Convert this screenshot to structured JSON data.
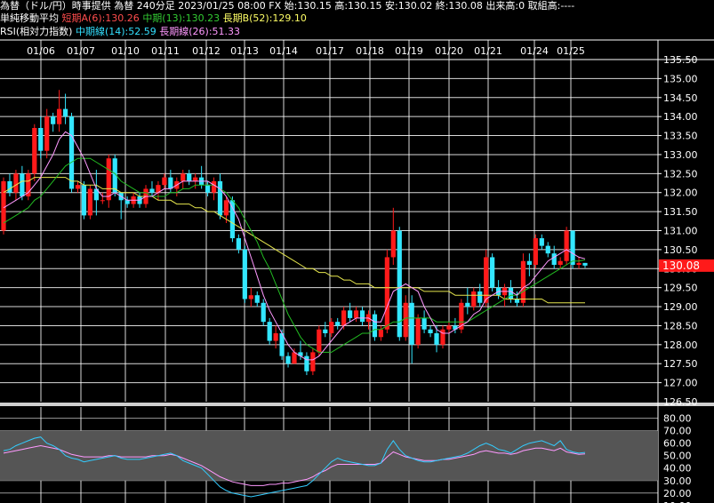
{
  "header": {
    "line1": "為替（ドル/円）時事提供 為替 240分足 2023/01/25 08:00 FX 始:130.15 高:130.15 安:130.02 終:130.08 出来高:0 取組高:----",
    "ma_label": "単純移動平均",
    "ma_short": "短期A(6):130.26",
    "ma_mid": "中期(13):130.23",
    "ma_long": "長期B(52):129.10",
    "rsi_label": "RSI(相対力指数)",
    "rsi_mid": "中期線(14):52.59",
    "rsi_long": "長期線(26):51.33"
  },
  "colors": {
    "up": "#ff1a1a",
    "down": "#33e6ff",
    "ma_short": "#ff99ff",
    "ma_mid": "#22bb22",
    "ma_long": "#e6e64d",
    "rsi_mid": "#33ccff",
    "rsi_long": "#ff99ff",
    "price_badge": "#ff1a1a"
  },
  "chart_data": [
    {
      "type": "candlestick",
      "x_labels": [
        "01/06",
        "01/07",
        "01/10",
        "01/11",
        "01/12",
        "01/13",
        "01/14",
        "01/17",
        "01/18",
        "01/19",
        "01/20",
        "01/21",
        "01/24",
        "01/25"
      ],
      "y_ticks": [
        "135.00",
        "134.50",
        "134.00",
        "133.50",
        "133.00",
        "132.50",
        "132.00",
        "131.50",
        "131.00",
        "130.50",
        "130.00",
        "129.50",
        "129.00",
        "128.50",
        "128.00",
        "127.50",
        "127.00"
      ],
      "y_tick_values": [
        135.0,
        134.5,
        134.0,
        133.5,
        133.0,
        132.5,
        132.0,
        131.5,
        131.0,
        130.5,
        130.0,
        129.5,
        129.0,
        128.5,
        128.0,
        127.5,
        127.0
      ],
      "ylim": [
        126.5,
        135.5
      ],
      "last_price": "130.08",
      "candles": [
        [
          131.0,
          132.4,
          130.9,
          132.3
        ],
        [
          132.3,
          132.5,
          131.9,
          132.0
        ],
        [
          132.0,
          132.6,
          131.8,
          132.5
        ],
        [
          132.5,
          132.7,
          131.8,
          131.9
        ],
        [
          131.9,
          132.6,
          131.8,
          132.5
        ],
        [
          132.5,
          133.8,
          132.3,
          133.7
        ],
        [
          133.7,
          134.0,
          132.9,
          133.1
        ],
        [
          133.1,
          134.2,
          132.9,
          134.0
        ],
        [
          134.0,
          134.1,
          133.6,
          133.8
        ],
        [
          133.8,
          134.7,
          133.6,
          134.2
        ],
        [
          134.2,
          134.6,
          133.8,
          134.0
        ],
        [
          134.0,
          134.1,
          132.0,
          132.1
        ],
        [
          132.1,
          132.3,
          132.0,
          132.2
        ],
        [
          132.2,
          132.3,
          131.3,
          131.4
        ],
        [
          131.4,
          132.2,
          131.3,
          132.1
        ],
        [
          132.1,
          132.6,
          131.4,
          131.8
        ],
        [
          131.8,
          132.0,
          131.7,
          131.8
        ],
        [
          131.8,
          133.0,
          131.6,
          132.9
        ],
        [
          132.9,
          133.0,
          131.9,
          132.0
        ],
        [
          132.0,
          132.0,
          131.3,
          131.8
        ],
        [
          131.8,
          131.9,
          131.6,
          131.7
        ],
        [
          131.7,
          132.0,
          131.6,
          131.9
        ],
        [
          131.9,
          132.0,
          131.6,
          131.7
        ],
        [
          131.7,
          132.2,
          131.6,
          132.1
        ],
        [
          132.1,
          132.3,
          131.9,
          132.0
        ],
        [
          132.0,
          132.3,
          131.8,
          132.2
        ],
        [
          132.2,
          132.5,
          132.1,
          132.4
        ],
        [
          132.4,
          132.6,
          132.0,
          132.1
        ],
        [
          132.1,
          132.4,
          131.9,
          132.3
        ],
        [
          132.3,
          132.6,
          132.1,
          132.5
        ],
        [
          132.5,
          132.6,
          132.2,
          132.3
        ],
        [
          132.3,
          132.5,
          132.1,
          132.4
        ],
        [
          132.4,
          132.7,
          132.1,
          132.2
        ],
        [
          132.2,
          132.3,
          131.9,
          132.0
        ],
        [
          132.0,
          132.4,
          131.8,
          132.3
        ],
        [
          132.3,
          132.5,
          131.3,
          131.4
        ],
        [
          131.4,
          131.9,
          131.2,
          131.8
        ],
        [
          131.8,
          131.9,
          130.7,
          130.8
        ],
        [
          130.8,
          130.9,
          130.4,
          130.5
        ],
        [
          130.5,
          130.6,
          129.1,
          129.2
        ],
        [
          129.2,
          129.5,
          129.0,
          129.3
        ],
        [
          129.3,
          129.4,
          129.0,
          129.1
        ],
        [
          129.1,
          129.2,
          128.5,
          128.6
        ],
        [
          128.6,
          128.7,
          128.0,
          128.1
        ],
        [
          128.1,
          128.5,
          127.9,
          128.3
        ],
        [
          128.3,
          128.4,
          127.6,
          127.7
        ],
        [
          127.7,
          127.8,
          127.4,
          127.5
        ],
        [
          127.5,
          127.9,
          127.5,
          127.8
        ],
        [
          127.8,
          128.1,
          127.6,
          127.7
        ],
        [
          127.7,
          127.8,
          127.2,
          127.3
        ],
        [
          127.3,
          127.9,
          127.2,
          127.8
        ],
        [
          127.8,
          128.5,
          127.7,
          128.4
        ],
        [
          128.4,
          128.6,
          128.2,
          128.3
        ],
        [
          128.3,
          128.7,
          128.2,
          128.6
        ],
        [
          128.6,
          128.7,
          128.4,
          128.5
        ],
        [
          128.5,
          129.0,
          128.4,
          128.9
        ],
        [
          128.9,
          129.1,
          128.6,
          128.7
        ],
        [
          128.7,
          129.0,
          128.6,
          128.9
        ],
        [
          128.9,
          129.0,
          128.5,
          128.6
        ],
        [
          128.6,
          128.9,
          128.4,
          128.8
        ],
        [
          128.8,
          128.9,
          128.1,
          128.2
        ],
        [
          128.2,
          128.5,
          128.1,
          128.4
        ],
        [
          128.4,
          130.5,
          128.3,
          130.3
        ],
        [
          130.3,
          131.6,
          130.1,
          131.0
        ],
        [
          131.0,
          131.1,
          128.1,
          128.2
        ],
        [
          128.2,
          129.3,
          128.1,
          129.1
        ],
        [
          129.1,
          129.3,
          127.5,
          128.0
        ],
        [
          128.0,
          128.8,
          127.9,
          128.7
        ],
        [
          128.7,
          128.9,
          128.3,
          128.4
        ],
        [
          128.4,
          128.5,
          128.2,
          128.3
        ],
        [
          128.3,
          128.5,
          127.8,
          128.0
        ],
        [
          128.0,
          128.5,
          127.9,
          128.4
        ],
        [
          128.4,
          128.6,
          128.3,
          128.5
        ],
        [
          128.5,
          128.7,
          128.3,
          128.4
        ],
        [
          128.4,
          129.2,
          128.3,
          129.1
        ],
        [
          129.1,
          129.5,
          128.8,
          129.0
        ],
        [
          129.0,
          129.5,
          128.9,
          129.4
        ],
        [
          129.4,
          129.6,
          129.0,
          129.1
        ],
        [
          129.1,
          130.5,
          129.0,
          130.3
        ],
        [
          130.3,
          130.4,
          129.4,
          129.5
        ],
        [
          129.5,
          129.7,
          129.2,
          129.3
        ],
        [
          129.3,
          129.6,
          129.0,
          129.5
        ],
        [
          129.5,
          129.7,
          129.1,
          129.2
        ],
        [
          129.2,
          129.4,
          129.0,
          129.1
        ],
        [
          129.1,
          130.4,
          129.0,
          130.2
        ],
        [
          130.2,
          130.4,
          129.8,
          130.1
        ],
        [
          130.1,
          130.9,
          130.0,
          130.8
        ],
        [
          130.8,
          130.9,
          130.5,
          130.6
        ],
        [
          130.6,
          130.7,
          130.3,
          130.4
        ],
        [
          130.4,
          130.6,
          130.0,
          130.1
        ],
        [
          130.1,
          130.3,
          130.0,
          130.2
        ],
        [
          130.2,
          131.1,
          130.1,
          131.0
        ],
        [
          131.0,
          131.0,
          130.0,
          130.1
        ],
        [
          130.1,
          130.3,
          130.0,
          130.15
        ],
        [
          130.15,
          130.15,
          130.02,
          130.08
        ]
      ],
      "ma_short": [
        131.6,
        131.7,
        131.8,
        131.9,
        132.0,
        132.2,
        132.4,
        132.7,
        133.0,
        133.4,
        133.6,
        133.5,
        133.2,
        132.9,
        132.5,
        132.1,
        131.9,
        131.9,
        132.0,
        131.9,
        131.8,
        131.8,
        131.8,
        131.9,
        131.9,
        132.0,
        132.1,
        132.1,
        132.2,
        132.3,
        132.3,
        132.3,
        132.3,
        132.3,
        132.2,
        132.1,
        131.9,
        131.6,
        131.3,
        130.8,
        130.3,
        129.8,
        129.3,
        128.9,
        128.6,
        128.3,
        128.0,
        127.8,
        127.7,
        127.6,
        127.6,
        127.7,
        127.9,
        128.1,
        128.3,
        128.5,
        128.6,
        128.7,
        128.7,
        128.7,
        128.6,
        128.6,
        129.0,
        129.4,
        129.5,
        129.6,
        129.5,
        129.4,
        129.0,
        128.7,
        128.4,
        128.3,
        128.3,
        128.4,
        128.5,
        128.6,
        128.8,
        128.9,
        129.2,
        129.3,
        129.4,
        129.4,
        129.4,
        129.3,
        129.5,
        129.6,
        129.8,
        130.0,
        130.2,
        130.3,
        130.4,
        130.5,
        130.4,
        130.3,
        130.26
      ],
      "ma_mid": [
        131.2,
        131.3,
        131.4,
        131.5,
        131.6,
        131.8,
        131.9,
        132.1,
        132.3,
        132.5,
        132.7,
        132.8,
        132.9,
        132.9,
        132.9,
        132.8,
        132.7,
        132.6,
        132.5,
        132.3,
        132.2,
        132.1,
        132.0,
        132.0,
        131.9,
        131.9,
        131.9,
        132.0,
        132.0,
        132.1,
        132.1,
        132.2,
        132.2,
        132.2,
        132.2,
        132.1,
        132.0,
        131.8,
        131.6,
        131.3,
        131.0,
        130.7,
        130.3,
        130.0,
        129.6,
        129.2,
        128.8,
        128.5,
        128.2,
        128.0,
        127.9,
        127.8,
        127.8,
        127.8,
        127.9,
        128.0,
        128.1,
        128.2,
        128.3,
        128.3,
        128.4,
        128.4,
        128.5,
        128.6,
        128.6,
        128.7,
        128.7,
        128.7,
        128.7,
        128.7,
        128.6,
        128.6,
        128.6,
        128.6,
        128.6,
        128.6,
        128.7,
        128.8,
        128.9,
        129.0,
        129.1,
        129.2,
        129.3,
        129.3,
        129.4,
        129.5,
        129.6,
        129.7,
        129.8,
        129.9,
        130.0,
        130.1,
        130.2,
        130.2,
        130.23
      ],
      "ma_long": [
        132.0,
        132.1,
        132.2,
        132.3,
        132.3,
        132.4,
        132.4,
        132.4,
        132.4,
        132.4,
        132.4,
        132.3,
        132.3,
        132.2,
        132.2,
        132.2,
        132.1,
        132.1,
        132.1,
        132.0,
        132.0,
        132.0,
        131.9,
        131.9,
        131.9,
        131.8,
        131.8,
        131.8,
        131.7,
        131.7,
        131.7,
        131.6,
        131.6,
        131.5,
        131.5,
        131.4,
        131.3,
        131.2,
        131.1,
        131.0,
        130.9,
        130.8,
        130.7,
        130.6,
        130.5,
        130.4,
        130.3,
        130.2,
        130.1,
        130.0,
        130.0,
        129.9,
        129.9,
        129.8,
        129.8,
        129.7,
        129.7,
        129.6,
        129.6,
        129.6,
        129.5,
        129.5,
        129.5,
        129.5,
        129.5,
        129.5,
        129.5,
        129.5,
        129.4,
        129.4,
        129.4,
        129.4,
        129.4,
        129.3,
        129.3,
        129.3,
        129.3,
        129.3,
        129.3,
        129.3,
        129.3,
        129.2,
        129.2,
        129.2,
        129.2,
        129.2,
        129.2,
        129.2,
        129.1,
        129.1,
        129.1,
        129.1,
        129.1,
        129.1,
        129.1
      ],
      "mid_series_name": "中期(13)",
      "short_series_name": "短期A(6)",
      "long_series_name": "長期B(52)"
    },
    {
      "type": "line",
      "y_ticks": [
        "80.00",
        "70.00",
        "60.00",
        "50.00",
        "40.00",
        "30.00",
        "20.00"
      ],
      "y_tick_values": [
        80,
        70,
        60,
        50,
        40,
        30,
        20
      ],
      "ylim": [
        12,
        89
      ],
      "band": [
        30,
        70
      ],
      "series": [
        {
          "name": "中期線(14)",
          "values": [
            54,
            55,
            58,
            60,
            62,
            64,
            65,
            60,
            58,
            55,
            50,
            48,
            47,
            45,
            46,
            47,
            48,
            49,
            50,
            48,
            47,
            47,
            47,
            48,
            49,
            50,
            51,
            52,
            50,
            46,
            44,
            42,
            40,
            35,
            30,
            25,
            22,
            20,
            19,
            18,
            17,
            18,
            19,
            20,
            21,
            22,
            23,
            24,
            25,
            26,
            30,
            35,
            40,
            45,
            48,
            46,
            45,
            44,
            43,
            42,
            42,
            44,
            55,
            62,
            55,
            50,
            48,
            46,
            45,
            45,
            46,
            47,
            48,
            49,
            50,
            52,
            55,
            58,
            60,
            58,
            55,
            54,
            52,
            55,
            58,
            60,
            61,
            62,
            60,
            58,
            62,
            55,
            53,
            52,
            52.59
          ]
        },
        {
          "name": "長期線(26)",
          "values": [
            52,
            53,
            54,
            55,
            56,
            57,
            58,
            57,
            56,
            55,
            53,
            51,
            50,
            49,
            49,
            49,
            49,
            50,
            50,
            49,
            49,
            49,
            49,
            49,
            50,
            50,
            50,
            51,
            50,
            48,
            46,
            44,
            42,
            39,
            36,
            33,
            31,
            29,
            28,
            27,
            26,
            26,
            26,
            27,
            27,
            28,
            28,
            29,
            30,
            31,
            33,
            36,
            38,
            41,
            43,
            43,
            43,
            43,
            43,
            43,
            43,
            44,
            49,
            53,
            51,
            49,
            48,
            47,
            46,
            46,
            46,
            47,
            47,
            48,
            49,
            50,
            51,
            53,
            54,
            53,
            52,
            52,
            51,
            52,
            54,
            55,
            56,
            56,
            55,
            54,
            56,
            53,
            52,
            51,
            51.33
          ]
        }
      ]
    }
  ]
}
